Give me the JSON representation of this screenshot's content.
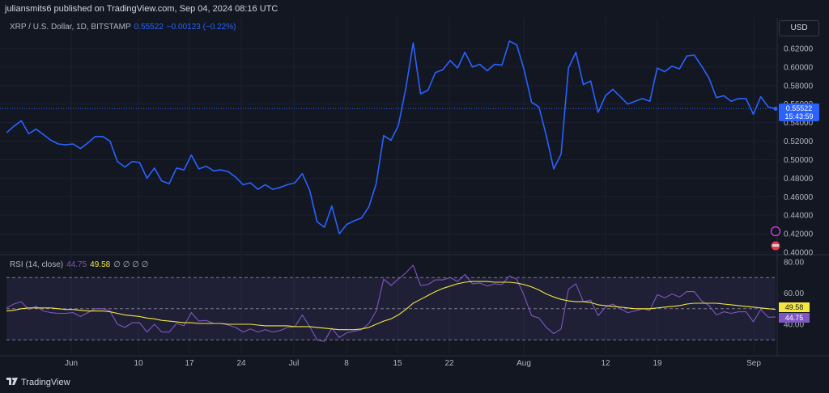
{
  "header": {
    "published": "juliansmits6 published on TradingView.com, Sep 04, 2024 08:16 UTC",
    "currency_button": "USD"
  },
  "legend": {
    "symbol": "XRP / U.S. Dollar, 1D, BITSTAMP",
    "price": "0.55522",
    "change": "−0.00123 (−0.22%)"
  },
  "rsi_legend": {
    "label": "RSI (14, close)",
    "rsi_value": "44.75",
    "ma_value": "49.58",
    "symbols": "∅ ∅ ∅ ∅"
  },
  "price_tag": {
    "price": "0.55522",
    "countdown": "15:43:59"
  },
  "rsi_tags": {
    "ma": "49.58",
    "rsi": "44.75"
  },
  "footer": {
    "brand": "TradingView"
  },
  "colors": {
    "price_line": "#2962ff",
    "rsi_line": "#7e57c2",
    "rsi_ma": "#f5e642",
    "background": "#131722"
  },
  "chart_data": [
    {
      "type": "line",
      "title": "XRP / U.S. Dollar, 1D, BITSTAMP",
      "x_tick_labels": [
        "Jun",
        "10",
        "17",
        "24",
        "Jul",
        "8",
        "15",
        "22",
        "Aug",
        "12",
        "19",
        "Sep"
      ],
      "y_tick_labels": [
        "0.62000",
        "0.60000",
        "0.58000",
        "0.56000",
        "0.54000",
        "0.52000",
        "0.50000",
        "0.48000",
        "0.46000",
        "0.44000",
        "0.42000",
        "0.40000"
      ],
      "ylim": [
        0.4,
        0.63
      ],
      "grid": true,
      "series": [
        {
          "values": [
            0.529,
            0.536,
            0.542,
            0.528,
            0.533,
            0.527,
            0.521,
            0.517,
            0.516,
            0.517,
            0.512,
            0.518,
            0.525,
            0.525,
            0.52,
            0.498,
            0.492,
            0.498,
            0.497,
            0.48,
            0.491,
            0.477,
            0.474,
            0.491,
            0.489,
            0.505,
            0.49,
            0.493,
            0.488,
            0.489,
            0.487,
            0.481,
            0.473,
            0.475,
            0.468,
            0.473,
            0.468,
            0.47,
            0.473,
            0.475,
            0.485,
            0.467,
            0.433,
            0.427,
            0.45,
            0.42,
            0.43,
            0.434,
            0.437,
            0.449,
            0.474,
            0.526,
            0.521,
            0.537,
            0.577,
            0.626,
            0.571,
            0.575,
            0.594,
            0.597,
            0.607,
            0.599,
            0.616,
            0.6,
            0.603,
            0.596,
            0.603,
            0.602,
            0.628,
            0.624,
            0.597,
            0.562,
            0.557,
            0.526,
            0.49,
            0.506,
            0.599,
            0.616,
            0.581,
            0.585,
            0.551,
            0.569,
            0.576,
            0.568,
            0.56,
            0.563,
            0.566,
            0.563,
            0.599,
            0.595,
            0.601,
            0.598,
            0.612,
            0.613,
            0.601,
            0.588,
            0.567,
            0.569,
            0.563,
            0.566,
            0.566,
            0.549,
            0.568,
            0.557,
            0.555
          ]
        }
      ],
      "current_price": 0.55522
    },
    {
      "type": "line",
      "title": "RSI (14, close)",
      "y_tick_labels": [
        "80.00",
        "60.00",
        "40.00"
      ],
      "ylim": [
        30,
        80
      ],
      "bands": [
        70,
        50,
        30
      ],
      "series": [
        {
          "name": "RSI",
          "values": [
            50.5,
            53,
            54.5,
            49.5,
            51.5,
            48.5,
            47.5,
            47,
            47,
            47.5,
            45,
            47.5,
            50,
            50,
            48.5,
            40,
            38,
            41,
            41,
            35,
            40,
            35,
            35,
            40.5,
            39,
            47.5,
            42,
            42.5,
            40.5,
            40.5,
            39.5,
            38,
            35,
            37,
            35,
            36.5,
            35,
            36,
            38,
            38.5,
            46,
            38.5,
            30,
            29,
            37.5,
            31.5,
            34.5,
            35.5,
            36.5,
            40.5,
            48.5,
            69,
            65,
            69,
            73,
            78,
            65,
            65.5,
            68.5,
            68.5,
            70,
            67.5,
            72,
            66,
            66.5,
            64.5,
            66,
            65.5,
            71,
            69,
            58.5,
            45.5,
            44,
            38,
            34,
            37,
            62.5,
            66,
            54.5,
            55.5,
            45.5,
            51,
            53,
            50,
            47.5,
            48.5,
            50,
            49,
            59,
            57,
            59.5,
            57.5,
            61,
            61,
            55,
            52,
            46,
            48,
            47,
            48,
            48,
            41.5,
            49.5,
            44.5,
            44.75
          ]
        },
        {
          "name": "RSI-based MA",
          "values": [
            48.5,
            49,
            50,
            50.5,
            50.5,
            50.5,
            50.5,
            50,
            49.5,
            49.5,
            49,
            48.5,
            48.5,
            48.5,
            48,
            47,
            46,
            45.5,
            45,
            44,
            43.5,
            42.5,
            42,
            41.5,
            41,
            41,
            40.5,
            40.5,
            40.5,
            40.5,
            40,
            40,
            40,
            40,
            39.5,
            39,
            39,
            39,
            39,
            38.5,
            38.5,
            38.5,
            38,
            37.5,
            37,
            36.5,
            36.5,
            36.5,
            37,
            38,
            40,
            42,
            43.5,
            46,
            49.5,
            53.5,
            56,
            58.5,
            61,
            63,
            64.5,
            66,
            67,
            67.5,
            67.5,
            67.5,
            67,
            67,
            67,
            66.5,
            65.5,
            64,
            62,
            59.5,
            57.5,
            56,
            55,
            54.5,
            54.5,
            54,
            52.5,
            52,
            51.5,
            51,
            50.5,
            50,
            50,
            50,
            50.5,
            51,
            51.5,
            52,
            53,
            53.5,
            53.5,
            53.5,
            53.5,
            53,
            52.5,
            52,
            51.5,
            51,
            50.5,
            50,
            49.58
          ]
        }
      ]
    }
  ]
}
